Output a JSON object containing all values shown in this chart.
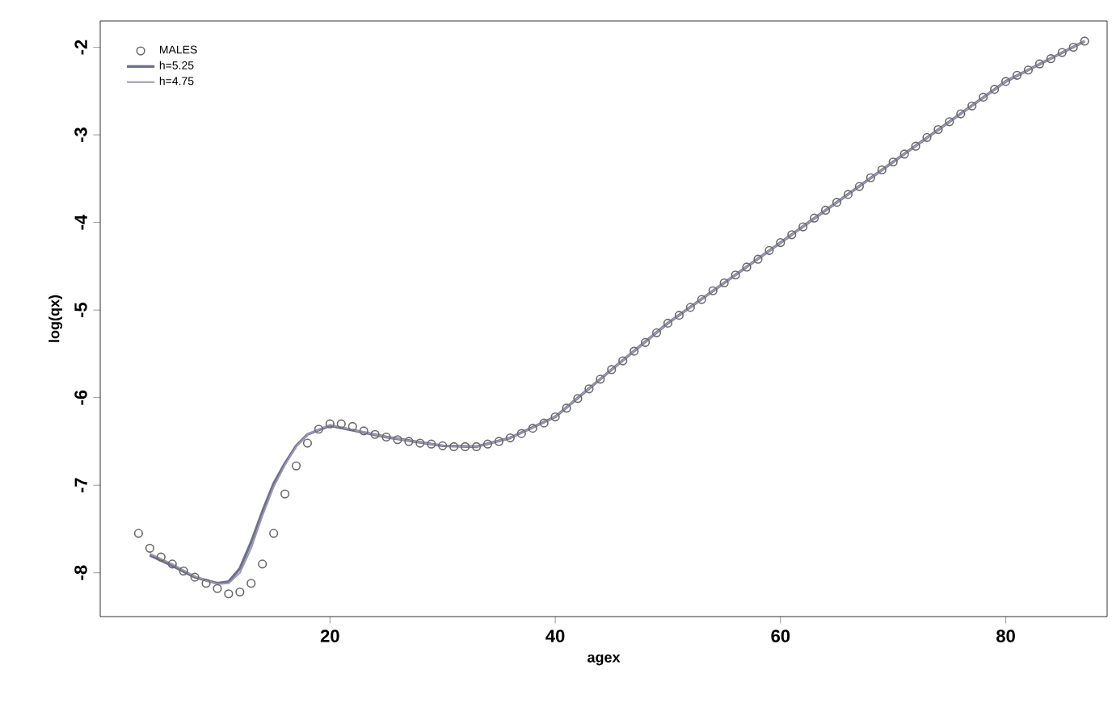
{
  "chart_data": {
    "type": "scatter",
    "xlabel": "agex",
    "ylabel": "log(qx)",
    "xlim": [
      -0.4,
      89
    ],
    "ylim": [
      -8.5,
      -1.7
    ],
    "xticks": [
      20,
      40,
      60,
      80
    ],
    "yticks": [
      -8,
      -7,
      -6,
      -5,
      -4,
      -3,
      -2
    ],
    "grid": false,
    "legend": "top left",
    "series": [
      {
        "name": "MALES",
        "marker": "circle",
        "color": "#6a6a6a",
        "x": [
          3,
          4,
          5,
          6,
          7,
          8,
          9,
          10,
          11,
          12,
          13,
          14,
          15,
          16,
          17,
          18,
          19,
          20,
          21,
          22,
          23,
          24,
          25,
          26,
          27,
          28,
          29,
          30,
          31,
          32,
          33,
          34,
          35,
          36,
          37,
          38,
          39,
          40,
          41,
          42,
          43,
          44,
          45,
          46,
          47,
          48,
          49,
          50,
          51,
          52,
          53,
          54,
          55,
          56,
          57,
          58,
          59,
          60,
          61,
          62,
          63,
          64,
          65,
          66,
          67,
          68,
          69,
          70,
          71,
          72,
          73,
          74,
          75,
          76,
          77,
          78,
          79,
          80,
          81,
          82,
          83,
          84,
          85,
          86,
          87
        ],
        "values": [
          -7.55,
          -7.72,
          -7.82,
          -7.9,
          -7.98,
          -8.05,
          -8.12,
          -8.18,
          -8.24,
          -8.22,
          -8.12,
          -7.9,
          -7.55,
          -7.1,
          -6.78,
          -6.52,
          -6.36,
          -6.3,
          -6.3,
          -6.33,
          -6.38,
          -6.42,
          -6.45,
          -6.48,
          -6.5,
          -6.52,
          -6.53,
          -6.55,
          -6.56,
          -6.56,
          -6.56,
          -6.53,
          -6.5,
          -6.46,
          -6.41,
          -6.35,
          -6.29,
          -6.22,
          -6.12,
          -6.01,
          -5.9,
          -5.79,
          -5.68,
          -5.58,
          -5.47,
          -5.37,
          -5.26,
          -5.15,
          -5.06,
          -4.97,
          -4.88,
          -4.78,
          -4.69,
          -4.6,
          -4.51,
          -4.42,
          -4.32,
          -4.23,
          -4.14,
          -4.05,
          -3.95,
          -3.86,
          -3.77,
          -3.68,
          -3.59,
          -3.49,
          -3.4,
          -3.31,
          -3.22,
          -3.13,
          -3.03,
          -2.94,
          -2.85,
          -2.76,
          -2.67,
          -2.57,
          -2.48,
          -2.39,
          -2.32,
          -2.26,
          -2.19,
          -2.13,
          -2.06,
          -2.0,
          -1.93
        ]
      },
      {
        "name": "h=5.25",
        "type": "line",
        "marker": "none",
        "color": "#6f6f8f",
        "x": [
          4,
          6,
          8,
          10,
          11,
          12,
          13,
          14,
          15,
          16,
          17,
          18,
          20,
          25,
          30,
          33,
          36,
          40,
          45,
          50,
          60,
          70,
          80,
          87
        ],
        "values": [
          -7.8,
          -7.92,
          -8.05,
          -8.12,
          -8.1,
          -7.95,
          -7.65,
          -7.3,
          -6.98,
          -6.75,
          -6.55,
          -6.42,
          -6.32,
          -6.45,
          -6.55,
          -6.56,
          -6.46,
          -6.22,
          -5.68,
          -5.15,
          -4.23,
          -3.31,
          -2.39,
          -1.93
        ]
      },
      {
        "name": "h=4.75",
        "type": "line",
        "marker": "none",
        "color": "#9a9aae",
        "x": [
          4,
          6,
          8,
          10,
          11,
          12,
          13,
          14,
          15,
          16,
          17,
          18,
          20,
          25,
          30,
          33,
          36,
          40,
          45,
          50,
          60,
          70,
          80,
          87
        ],
        "values": [
          -7.78,
          -7.9,
          -8.04,
          -8.13,
          -8.12,
          -8.0,
          -7.72,
          -7.35,
          -7.02,
          -6.77,
          -6.56,
          -6.42,
          -6.31,
          -6.45,
          -6.55,
          -6.56,
          -6.46,
          -6.22,
          -5.68,
          -5.15,
          -4.23,
          -3.31,
          -2.39,
          -1.93
        ]
      }
    ]
  }
}
